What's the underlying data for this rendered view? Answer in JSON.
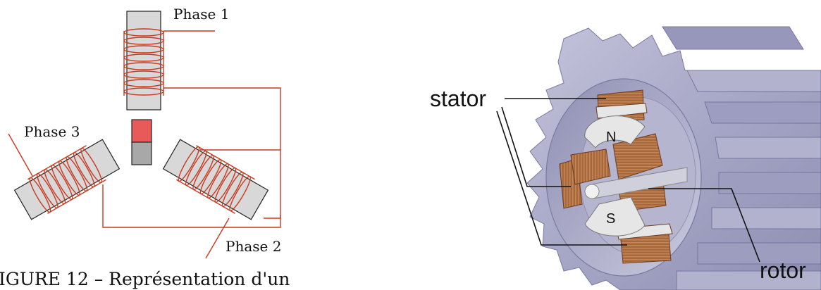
{
  "left_figure": {
    "labels": {
      "phase1": "Phase 1",
      "phase2": "Phase 2",
      "phase3": "Phase 3"
    },
    "caption": "IGURE 12 – Représentation d'un",
    "colors": {
      "winding": "#c8391f",
      "core": "#d8d8d8",
      "magnet_north": "#e85a5a",
      "magnet_south": "#a8a8a8"
    }
  },
  "right_figure": {
    "labels": {
      "stator": "stator",
      "rotor": "rotor",
      "north": "N",
      "south": "S"
    },
    "colors": {
      "housing": "#a8a8c8",
      "coil": "#a8683e",
      "magnet": "#e6e6e6"
    }
  }
}
